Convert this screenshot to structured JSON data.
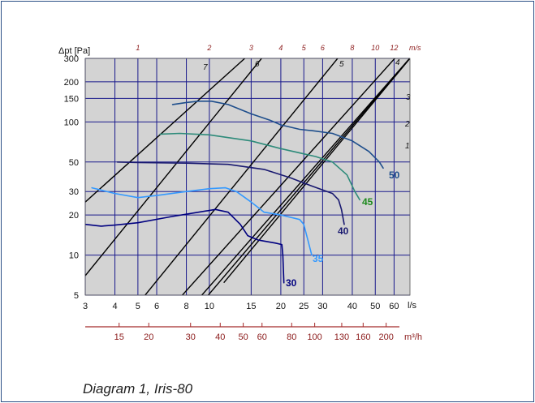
{
  "caption": "Diagram 1, Iris-80",
  "colors": {
    "plot_bg": "#d3d3d3",
    "grid": "#1a1a8c",
    "frame": "#2b4f86",
    "m3h_axis": "#a52a2a",
    "system_line": "#000000"
  },
  "chart_data": {
    "type": "line",
    "title": "",
    "xlabel": "l/s",
    "x2label": "m³/h",
    "ylabel": "Δpt [Pa]",
    "xscale": "log",
    "yscale": "log",
    "xlim": [
      3,
      70
    ],
    "ylim": [
      5,
      300
    ],
    "grid": true,
    "x_ticks": [
      3,
      4,
      5,
      6,
      8,
      10,
      15,
      20,
      25,
      30,
      40,
      50,
      60
    ],
    "x_tick_labels": [
      "3",
      "4",
      "5",
      "6",
      "8",
      "10",
      "15",
      "20",
      "25",
      "30",
      "40",
      "50",
      "60"
    ],
    "y_ticks": [
      5,
      10,
      20,
      30,
      50,
      100,
      150,
      200,
      300
    ],
    "y_tick_labels": [
      "5",
      "10",
      "20",
      "30",
      "50",
      "100",
      "150",
      "200",
      "300"
    ],
    "m3h_ticks": [
      15,
      20,
      30,
      40,
      50,
      60,
      80,
      100,
      130,
      160,
      200
    ],
    "m3h_tick_labels": [
      "15",
      "20",
      "30",
      "40",
      "50",
      "60",
      "80",
      "100",
      "130",
      "160",
      "200"
    ],
    "velocity_unit": "m/s",
    "velocity_ticks": [
      {
        "label": "1",
        "x": 5
      },
      {
        "label": "2",
        "x": 10
      },
      {
        "label": "3",
        "x": 15
      },
      {
        "label": "4",
        "x": 20
      },
      {
        "label": "5",
        "x": 25
      },
      {
        "label": "6",
        "x": 30
      },
      {
        "label": "8",
        "x": 40
      },
      {
        "label": "10",
        "x": 50
      },
      {
        "label": "12",
        "x": 60
      }
    ],
    "system_lines": [
      {
        "label": "7",
        "x0": 3,
        "y0": 25,
        "x1": 14.1,
        "y1": 300
      },
      {
        "label": "6",
        "x0": 3,
        "y0": 7,
        "x1": 16.6,
        "y1": 300
      },
      {
        "label": "5",
        "x0": 3,
        "y0": 1.4,
        "x1": 34.7,
        "y1": 300
      },
      {
        "label": "4",
        "x0": 4.6,
        "y0": 1.8,
        "x1": 60.4,
        "y1": 300
      },
      {
        "label": "3",
        "x0": 4.6,
        "y0": 1.2,
        "x1": 69.8,
        "y1": 300
      },
      {
        "label": "2",
        "x0": 7.5,
        "y0": 2.8,
        "x1": 69.8,
        "y1": 300
      },
      {
        "label": "1",
        "x0": 11.5,
        "y0": 6.2,
        "x1": 70,
        "y1": 300
      }
    ],
    "series": [
      {
        "name": "50",
        "color": "#1e4e8c",
        "points": [
          [
            7,
            135
          ],
          [
            8,
            140
          ],
          [
            9,
            143
          ],
          [
            10.2,
            143
          ],
          [
            12,
            135
          ],
          [
            15,
            115
          ],
          [
            18,
            103
          ],
          [
            20,
            95
          ],
          [
            24,
            88
          ],
          [
            27,
            86
          ],
          [
            33,
            82
          ],
          [
            40,
            72
          ],
          [
            47,
            60
          ],
          [
            52,
            50
          ],
          [
            54,
            45
          ]
        ]
      },
      {
        "name": "45",
        "color": "#2e8b7a",
        "points": [
          [
            6.2,
            81
          ],
          [
            7.5,
            82
          ],
          [
            10,
            80
          ],
          [
            15,
            72
          ],
          [
            20,
            63
          ],
          [
            28,
            55
          ],
          [
            33,
            50
          ],
          [
            38,
            40
          ],
          [
            41,
            30
          ],
          [
            43,
            26
          ]
        ]
      },
      {
        "name": "40",
        "color": "#191970",
        "points": [
          [
            4.1,
            50
          ],
          [
            5,
            49.5
          ],
          [
            8,
            49
          ],
          [
            12,
            48
          ],
          [
            17,
            44
          ],
          [
            22,
            38
          ],
          [
            27,
            33
          ],
          [
            33,
            29
          ],
          [
            35,
            26
          ],
          [
            36,
            22
          ],
          [
            37,
            17
          ]
        ]
      },
      {
        "name": "35",
        "color": "#3399ff",
        "points": [
          [
            3.2,
            32
          ],
          [
            4,
            29
          ],
          [
            5,
            27
          ],
          [
            6,
            28
          ],
          [
            8,
            30
          ],
          [
            10,
            31.5
          ],
          [
            11.7,
            32
          ],
          [
            13,
            30
          ],
          [
            15,
            25
          ],
          [
            17,
            21
          ],
          [
            20,
            20
          ],
          [
            24,
            18.5
          ],
          [
            25,
            17
          ],
          [
            26,
            13
          ],
          [
            27,
            10
          ]
        ]
      },
      {
        "name": "30",
        "color": "#000080",
        "points": [
          [
            3,
            17
          ],
          [
            3.5,
            16.5
          ],
          [
            4,
            16.8
          ],
          [
            5,
            17.5
          ],
          [
            7,
            19.5
          ],
          [
            9,
            21
          ],
          [
            10.6,
            22
          ],
          [
            12,
            21
          ],
          [
            13.5,
            17
          ],
          [
            14.5,
            14
          ],
          [
            16,
            13
          ],
          [
            19,
            12.3
          ],
          [
            20.2,
            12
          ],
          [
            20.4,
            10
          ],
          [
            20.5,
            8
          ],
          [
            20.6,
            6.2
          ]
        ]
      }
    ]
  }
}
